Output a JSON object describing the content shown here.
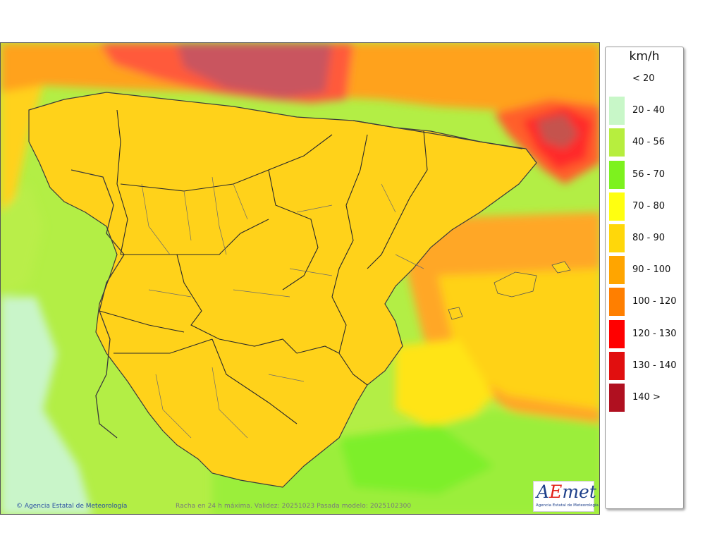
{
  "map": {
    "copyright": "Agencia Estatal de Meteorología",
    "caption": "Racha en 24 h máxima. Validez: 20251023 Pasada modelo: 2025102300"
  },
  "logo": {
    "wordmark_a": "A",
    "wordmark_e": "E",
    "wordmark_rest": "met",
    "subtitle": "Agencia Estatal de Meteorología"
  },
  "legend": {
    "unit": "km/h",
    "classes": [
      {
        "label": "< 20",
        "color": "#ffffff"
      },
      {
        "label": "20 - 40",
        "color": "#c8f7c8"
      },
      {
        "label": "40 - 56",
        "color": "#b7ee3e"
      },
      {
        "label": "56 - 70",
        "color": "#7df21e"
      },
      {
        "label": "70 - 80",
        "color": "#ffff10"
      },
      {
        "label": "80 - 90",
        "color": "#ffd70a"
      },
      {
        "label": "90 - 100",
        "color": "#ffa500"
      },
      {
        "label": "100 - 120",
        "color": "#ff7f00"
      },
      {
        "label": "120 - 130",
        "color": "#ff0000"
      },
      {
        "label": "130 - 140",
        "color": "#e10f0f"
      },
      {
        "label": "140 >",
        "color": "#b01020"
      }
    ]
  }
}
